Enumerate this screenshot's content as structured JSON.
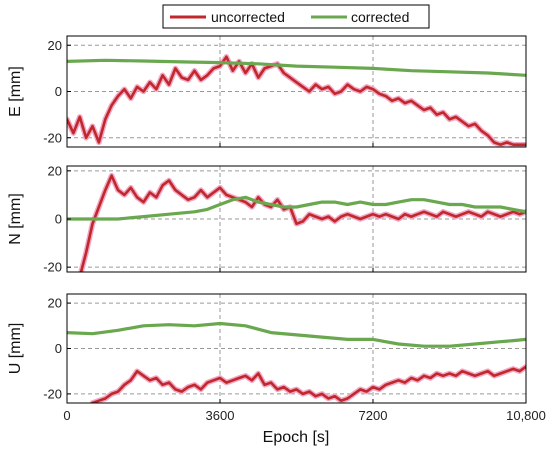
{
  "chart_data": {
    "type": "line",
    "xlabel": "Epoch  [s]",
    "xlim": [
      0,
      10800
    ],
    "xticks": [
      0,
      3600,
      7200,
      10800
    ],
    "xtick_labels": [
      "0",
      "3600",
      "7200",
      "10,800"
    ],
    "yticks": [
      -20,
      0,
      20
    ],
    "grid": true,
    "legend": {
      "placement": "top-center",
      "entries": [
        "uncorrected",
        "corrected"
      ]
    },
    "colors": {
      "uncorrected": "#c0282c",
      "uncorrected_halo": "#f2a7c4",
      "corrected": "#6aa84f"
    },
    "panels": [
      {
        "ylabel": "E  [mm]",
        "ylim": [
          -24,
          24
        ],
        "series": [
          {
            "name": "uncorrected",
            "x": [
              0,
              150,
              300,
              450,
              600,
              750,
              900,
              1050,
              1200,
              1350,
              1500,
              1650,
              1800,
              1950,
              2100,
              2250,
              2400,
              2550,
              2700,
              2850,
              3000,
              3150,
              3300,
              3450,
              3600,
              3750,
              3900,
              4050,
              4200,
              4350,
              4500,
              4650,
              4800,
              4950,
              5100,
              5250,
              5400,
              5550,
              5700,
              5850,
              6000,
              6150,
              6300,
              6450,
              6600,
              6750,
              6900,
              7050,
              7200,
              7350,
              7500,
              7650,
              7800,
              7950,
              8100,
              8250,
              8400,
              8550,
              8700,
              8850,
              9000,
              9150,
              9300,
              9450,
              9600,
              9750,
              9900,
              10050,
              10200,
              10350,
              10500,
              10650,
              10800
            ],
            "y": [
              -12,
              -18,
              -11,
              -20,
              -15,
              -22,
              -12,
              -6,
              -2,
              1,
              -3,
              2,
              0,
              4,
              1,
              7,
              3,
              10,
              6,
              5,
              9,
              5,
              7,
              10,
              11,
              15,
              9,
              13,
              8,
              12,
              6,
              10,
              11,
              12,
              8,
              6,
              4,
              2,
              0,
              3,
              1,
              2,
              -1,
              0,
              3,
              1,
              0,
              2,
              1,
              -1,
              -2,
              -4,
              -3,
              -5,
              -4,
              -6,
              -8,
              -7,
              -10,
              -9,
              -12,
              -11,
              -13,
              -15,
              -14,
              -17,
              -19,
              -22,
              -23,
              -22,
              -23,
              -23,
              -23
            ]
          },
          {
            "name": "corrected",
            "x": [
              0,
              900,
              1800,
              2700,
              3600,
              4500,
              5400,
              6300,
              7200,
              8100,
              9000,
              9900,
              10800
            ],
            "y": [
              13,
              13.5,
              13.2,
              12.8,
              12.5,
              12,
              11,
              10.5,
              10,
              9,
              8.5,
              8,
              7
            ]
          }
        ]
      },
      {
        "ylabel": "N  [mm]",
        "ylim": [
          -22,
          22
        ],
        "series": [
          {
            "name": "uncorrected",
            "x": [
              300,
              450,
              600,
              750,
              900,
              1050,
              1200,
              1350,
              1500,
              1650,
              1800,
              1950,
              2100,
              2250,
              2400,
              2550,
              2700,
              2850,
              3000,
              3150,
              3300,
              3450,
              3600,
              3750,
              3900,
              4050,
              4200,
              4350,
              4500,
              4650,
              4800,
              4950,
              5100,
              5250,
              5400,
              5550,
              5700,
              5850,
              6000,
              6150,
              6300,
              6450,
              6600,
              6750,
              6900,
              7050,
              7200,
              7350,
              7500,
              7650,
              7800,
              7950,
              8100,
              8250,
              8400,
              8550,
              8700,
              8850,
              9000,
              9150,
              9300,
              9450,
              9600,
              9750,
              9900,
              10050,
              10200,
              10350,
              10500,
              10650,
              10800
            ],
            "y": [
              -24,
              -14,
              -2,
              5,
              12,
              18,
              12,
              10,
              13,
              9,
              7,
              11,
              9,
              14,
              16,
              12,
              10,
              8,
              9,
              12,
              9,
              11,
              13,
              10,
              9,
              8,
              7,
              5,
              9,
              6,
              5,
              8,
              4,
              5,
              -2,
              -1,
              2,
              1,
              0,
              1,
              -1,
              1,
              2,
              1,
              0,
              1,
              2,
              1,
              2,
              1,
              0,
              2,
              1,
              2,
              3,
              2,
              1,
              3,
              2,
              1,
              2,
              3,
              2,
              1,
              3,
              2,
              1,
              2,
              3,
              2,
              3
            ]
          },
          {
            "name": "corrected",
            "x": [
              0,
              600,
              1200,
              1800,
              2400,
              3000,
              3300,
              3600,
              3900,
              4200,
              4500,
              4800,
              5100,
              5400,
              5700,
              6000,
              6300,
              6600,
              6900,
              7200,
              7500,
              7800,
              8100,
              8400,
              8700,
              9000,
              9300,
              9600,
              9900,
              10200,
              10500,
              10800
            ],
            "y": [
              0,
              0,
              0,
              1,
              2,
              3,
              4,
              6,
              8,
              9,
              7,
              6,
              5,
              5,
              6,
              7,
              7,
              6,
              7,
              6,
              6,
              7,
              8,
              8,
              7,
              6,
              6,
              5,
              5,
              5,
              4,
              3
            ]
          }
        ]
      },
      {
        "ylabel": "U  [mm]",
        "ylim": [
          -24,
          24
        ],
        "series": [
          {
            "name": "uncorrected",
            "x": [
              600,
              750,
              900,
              1050,
              1200,
              1350,
              1500,
              1650,
              1800,
              1950,
              2100,
              2250,
              2400,
              2550,
              2700,
              2850,
              3000,
              3150,
              3300,
              3450,
              3600,
              3750,
              3900,
              4050,
              4200,
              4350,
              4500,
              4650,
              4800,
              4950,
              5100,
              5250,
              5400,
              5550,
              5700,
              5850,
              6000,
              6150,
              6300,
              6450,
              6600,
              6750,
              6900,
              7050,
              7200,
              7350,
              7500,
              7650,
              7800,
              7950,
              8100,
              8250,
              8400,
              8550,
              8700,
              8850,
              9000,
              9150,
              9300,
              9450,
              9600,
              9750,
              9900,
              10050,
              10200,
              10350,
              10500,
              10650,
              10800
            ],
            "y": [
              -24,
              -23,
              -22,
              -20,
              -19,
              -16,
              -14,
              -10,
              -12,
              -14,
              -13,
              -16,
              -15,
              -18,
              -19,
              -17,
              -16,
              -18,
              -15,
              -14,
              -13,
              -15,
              -14,
              -13,
              -12,
              -14,
              -11,
              -16,
              -15,
              -18,
              -17,
              -19,
              -18,
              -20,
              -19,
              -21,
              -20,
              -22,
              -21,
              -23,
              -22,
              -20,
              -18,
              -19,
              -17,
              -18,
              -16,
              -15,
              -14,
              -15,
              -13,
              -14,
              -12,
              -13,
              -11,
              -12,
              -11,
              -12,
              -10,
              -11,
              -12,
              -11,
              -10,
              -12,
              -11,
              -10,
              -9,
              -10,
              -8
            ]
          },
          {
            "name": "corrected",
            "x": [
              0,
              600,
              1200,
              1800,
              2400,
              3000,
              3600,
              4200,
              4800,
              5400,
              6000,
              6600,
              7200,
              7800,
              8400,
              9000,
              9600,
              10200,
              10500,
              10800
            ],
            "y": [
              7,
              6.5,
              8,
              10,
              10.5,
              10,
              11,
              10,
              7,
              6,
              5,
              4,
              4,
              2,
              1,
              1,
              2,
              3,
              3.5,
              4
            ]
          }
        ]
      }
    ]
  }
}
